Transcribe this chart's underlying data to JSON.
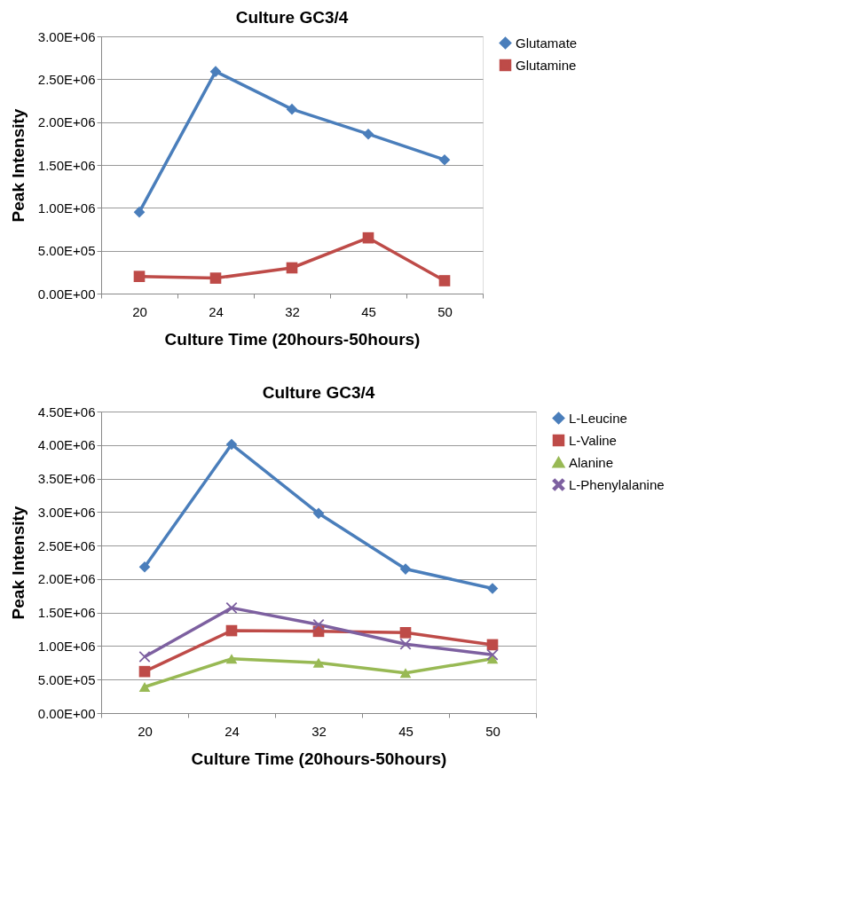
{
  "chart_data": [
    {
      "type": "line",
      "title": "Culture GC3/4",
      "xlabel": "Culture Time (20hours-50hours)",
      "ylabel": "Peak Intensity",
      "categories": [
        "20",
        "24",
        "32",
        "45",
        "50"
      ],
      "series": [
        {
          "name": "Glutamate",
          "color": "#4a7ebb",
          "marker": "diamond",
          "values": [
            950000,
            2590000,
            2150000,
            1860000,
            1560000
          ]
        },
        {
          "name": "Glutamine",
          "color": "#be4b48",
          "marker": "square",
          "values": [
            200000,
            180000,
            300000,
            650000,
            150000
          ]
        }
      ],
      "ylim": [
        0,
        3000000
      ],
      "yticks": [
        {
          "value": 0,
          "label": "0.00E+00"
        },
        {
          "value": 500000,
          "label": "5.00E+05"
        },
        {
          "value": 1000000,
          "label": "1.00E+06"
        },
        {
          "value": 1500000,
          "label": "1.50E+06"
        },
        {
          "value": 2000000,
          "label": "2.00E+06"
        },
        {
          "value": 2500000,
          "label": "2.50E+06"
        },
        {
          "value": 3000000,
          "label": "3.00E+06"
        }
      ],
      "grid": "y",
      "legend": "right",
      "line_style": "solid"
    },
    {
      "type": "line",
      "title": "Culture GC3/4",
      "xlabel": "Culture Time (20hours-50hours)",
      "ylabel": "Peak Intensity",
      "categories": [
        "20",
        "24",
        "32",
        "45",
        "50"
      ],
      "series": [
        {
          "name": "L-Leucine",
          "color": "#4a7ebb",
          "marker": "diamond",
          "values": [
            2180000,
            4010000,
            2980000,
            2150000,
            1860000
          ]
        },
        {
          "name": "L-Valine",
          "color": "#be4b48",
          "marker": "square",
          "values": [
            620000,
            1230000,
            1220000,
            1200000,
            1020000
          ]
        },
        {
          "name": "Alanine",
          "color": "#98b954",
          "marker": "triangle",
          "values": [
            390000,
            810000,
            750000,
            600000,
            810000
          ]
        },
        {
          "name": "L-Phenylalanine",
          "color": "#7d60a0",
          "marker": "cross",
          "values": [
            840000,
            1570000,
            1320000,
            1030000,
            870000
          ]
        }
      ],
      "ylim": [
        0,
        4500000
      ],
      "yticks": [
        {
          "value": 0,
          "label": "0.00E+00"
        },
        {
          "value": 500000,
          "label": "5.00E+05"
        },
        {
          "value": 1000000,
          "label": "1.00E+06"
        },
        {
          "value": 1500000,
          "label": "1.50E+06"
        },
        {
          "value": 2000000,
          "label": "2.00E+06"
        },
        {
          "value": 2500000,
          "label": "2.50E+06"
        },
        {
          "value": 3000000,
          "label": "3.00E+06"
        },
        {
          "value": 3500000,
          "label": "3.50E+06"
        },
        {
          "value": 4000000,
          "label": "4.00E+06"
        },
        {
          "value": 4500000,
          "label": "4.50E+06"
        }
      ],
      "grid": "y",
      "legend": "right",
      "line_style": "solid"
    }
  ]
}
